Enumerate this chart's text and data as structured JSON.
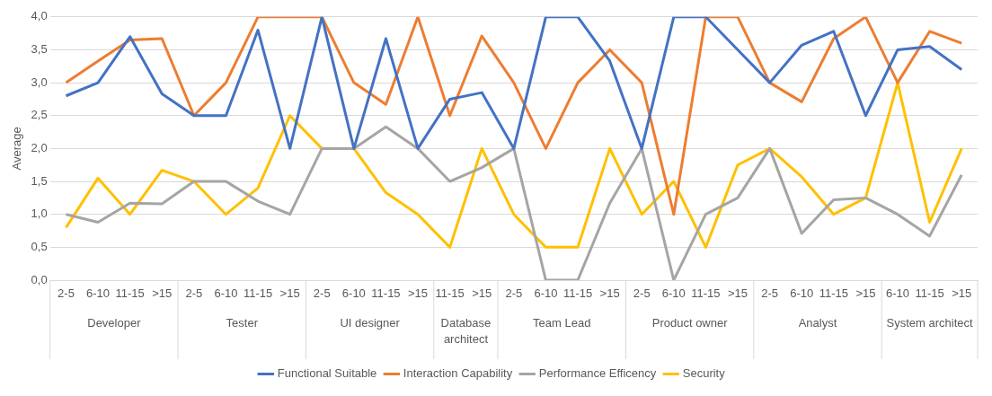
{
  "chart_data": {
    "type": "line",
    "ylabel": "Average",
    "categories": [
      "2-5",
      "6-10",
      "11-15",
      ">15",
      "2-5",
      "6-10",
      "11-15",
      ">15",
      "2-5",
      "6-10",
      "11-15",
      ">15",
      "11-15",
      ">15",
      "2-5",
      "6-10",
      "11-15",
      ">15",
      "2-5",
      "6-10",
      "11-15",
      ">15",
      "2-5",
      "6-10",
      "11-15",
      ">15",
      "6-10",
      "11-15",
      ">15"
    ],
    "series": [
      {
        "name": "Functional Suitable",
        "color": "#4472c4",
        "values": [
          2.8,
          3.0,
          3.7,
          2.83,
          2.5,
          2.5,
          3.8,
          2.0,
          4.0,
          2.0,
          3.67,
          2.0,
          2.75,
          2.85,
          2.0,
          4.0,
          4.0,
          3.33,
          2.0,
          4.0,
          4.0,
          3.5,
          3.0,
          3.57,
          3.78,
          2.5,
          3.5,
          3.55,
          3.2
        ]
      },
      {
        "name": "Interaction Capability",
        "color": "#ed7d31",
        "values": [
          3.0,
          3.33,
          3.65,
          3.67,
          2.5,
          3.0,
          4.0,
          4.0,
          4.0,
          3.0,
          2.67,
          4.0,
          2.5,
          3.71,
          3.0,
          2.0,
          3.0,
          3.5,
          3.0,
          1.0,
          4.0,
          4.0,
          3.0,
          2.71,
          3.67,
          4.0,
          3.0,
          3.78,
          3.6
        ]
      },
      {
        "name": "Performance Efficency",
        "color": "#a5a5a5",
        "values": [
          1.0,
          0.88,
          1.17,
          1.16,
          1.5,
          1.5,
          1.2,
          1.0,
          2.0,
          2.0,
          2.33,
          2.0,
          1.5,
          1.71,
          2.0,
          0,
          0,
          1.17,
          2.0,
          0,
          1.0,
          1.25,
          2.0,
          0.71,
          1.22,
          1.25,
          1.0,
          0.67,
          1.6
        ]
      },
      {
        "name": "Security",
        "color": "#ffc000",
        "values": [
          0.8,
          1.55,
          1.0,
          1.67,
          1.5,
          1.0,
          1.4,
          2.5,
          2.0,
          2.0,
          1.33,
          1.0,
          0.5,
          2.0,
          1.0,
          0.5,
          0.5,
          2.0,
          1.0,
          1.5,
          0.5,
          1.75,
          2.0,
          1.57,
          1.0,
          1.25,
          3.0,
          0.88,
          2.0
        ]
      }
    ],
    "annotations": [
      "Developer",
      "Tester",
      "UI designer",
      "Database architect",
      "Team Lead",
      "Product owner",
      "Analyst",
      "System architect"
    ],
    "ylim": [
      0,
      4
    ],
    "yticks": [
      {
        "value": 0,
        "label": "0,0"
      },
      {
        "value": 0.5,
        "label": "0,5"
      },
      {
        "value": 1,
        "label": "1,0"
      },
      {
        "value": 1.5,
        "label": "1,5"
      },
      {
        "value": 2,
        "label": "2,0"
      },
      {
        "value": 2.5,
        "label": "2,5"
      },
      {
        "value": 3,
        "label": "3,0"
      },
      {
        "value": 3.5,
        "label": "3,5"
      },
      {
        "value": 4,
        "label": "4,0"
      }
    ],
    "grid": "y",
    "legend": "bottom",
    "marker": "none",
    "line_style": "solid"
  }
}
